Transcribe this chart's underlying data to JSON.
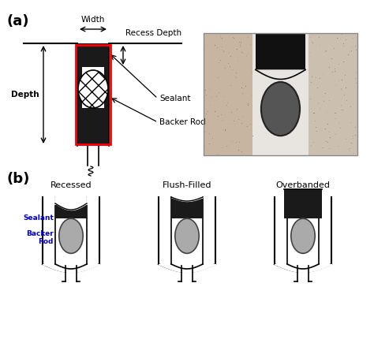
{
  "bg_color": "#ffffff",
  "panel_a_label": "(a)",
  "panel_b_label": "(b)",
  "label_width": "Width",
  "label_recess_depth": "Recess Depth",
  "label_depth": "Depth",
  "label_sealant": "Sealant",
  "label_backer_rod": "Backer Rod",
  "label_recessed": "Recessed",
  "label_flush": "Flush-Filled",
  "label_overbanded": "Overbanded",
  "label_sealant_b": "Sealant",
  "label_backer_rod_b": "Backer\nRod",
  "red_box_color": "#ff0000",
  "black_color": "#000000",
  "gray_color": "#b0b0b0",
  "blue_color": "#0000cc",
  "sealant_dark": "#1a1a1a",
  "hatch_pattern": "x"
}
